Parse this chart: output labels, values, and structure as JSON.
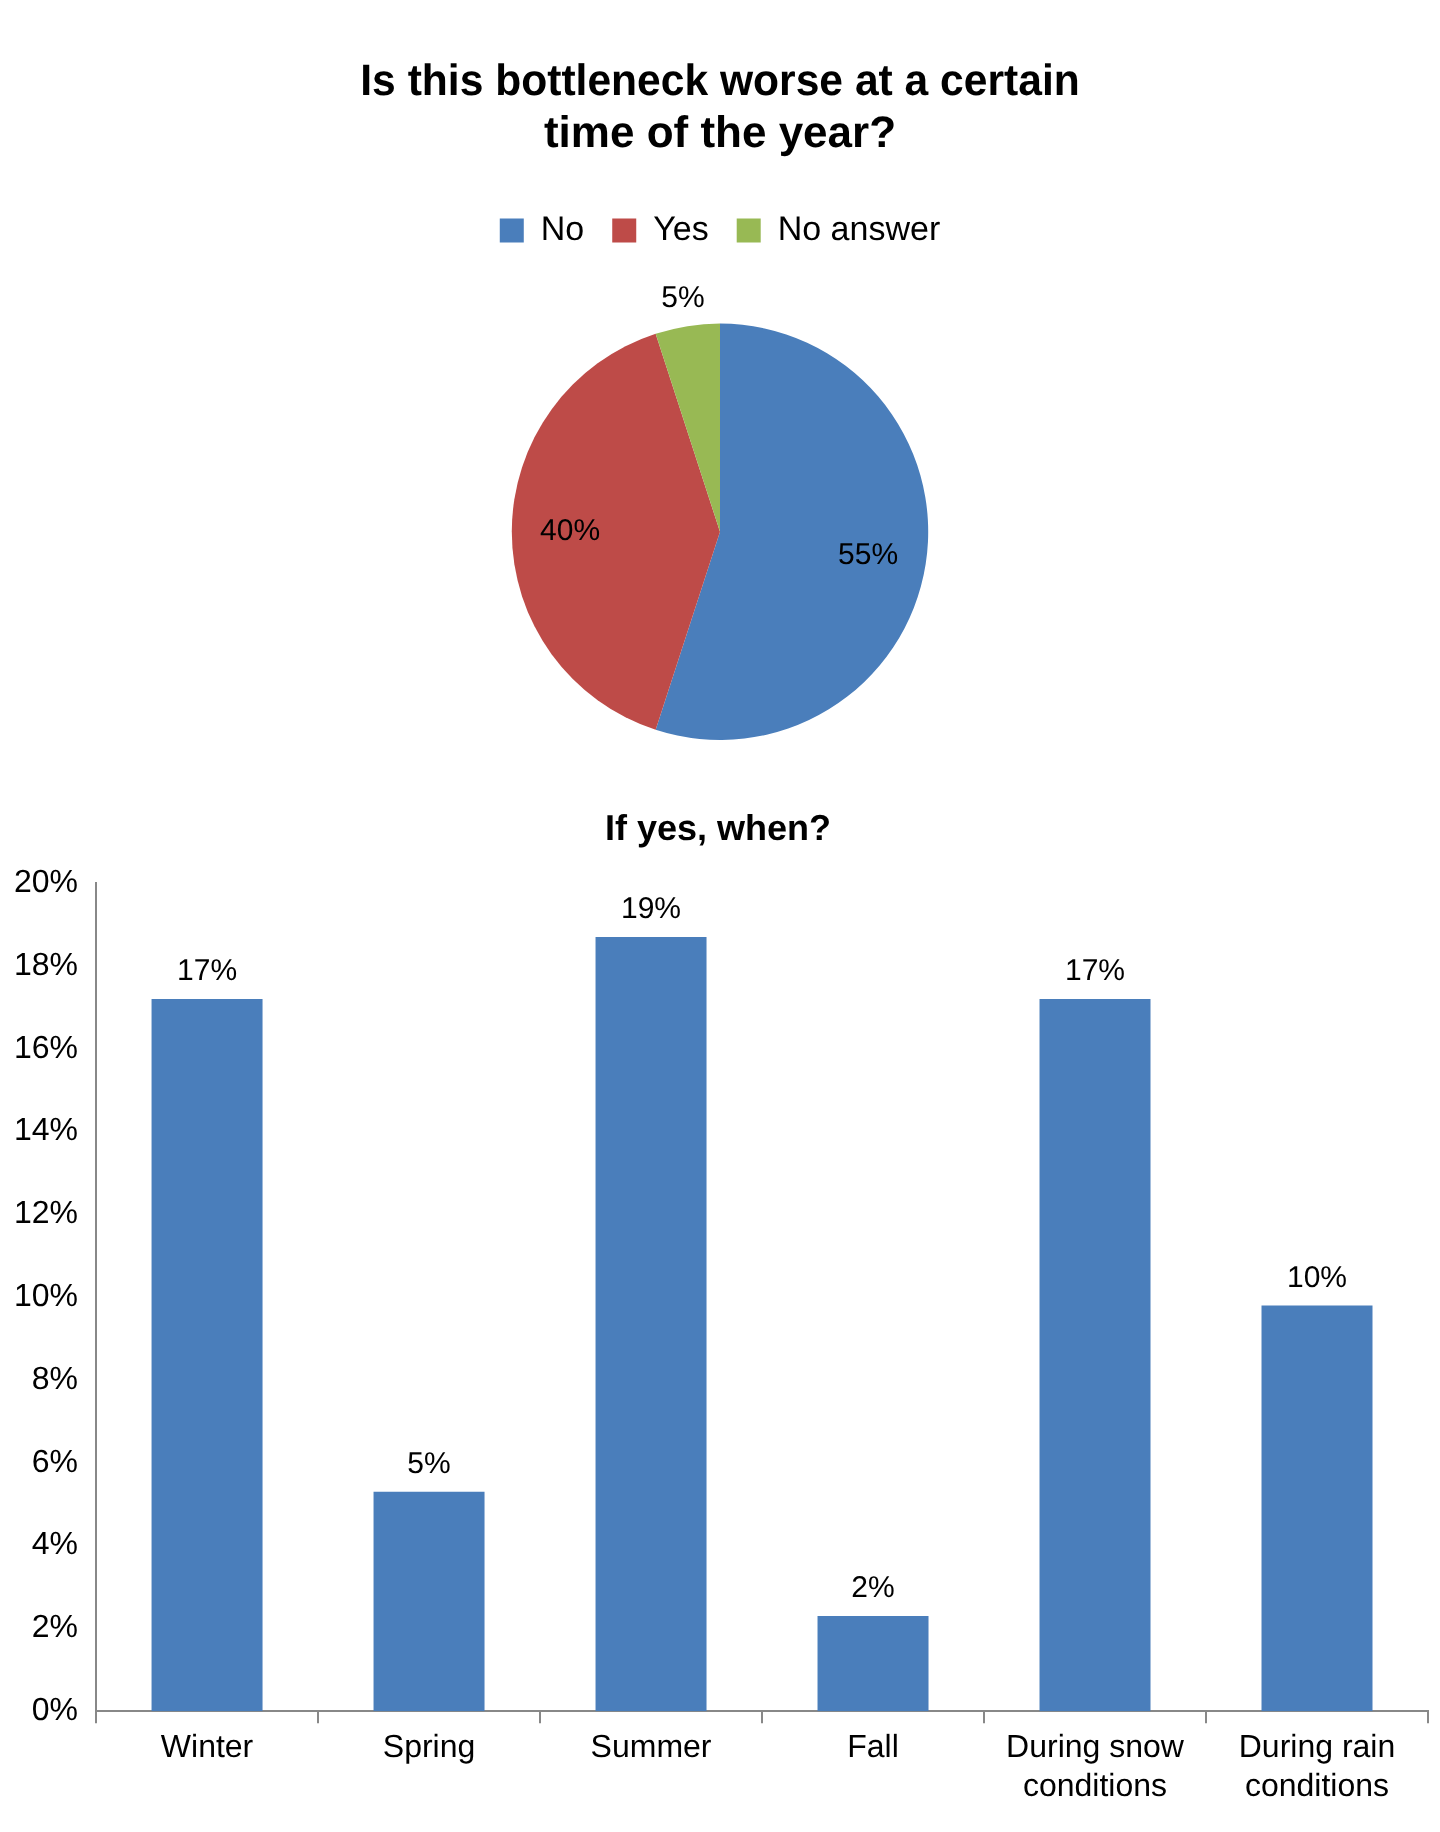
{
  "chart_data": [
    {
      "type": "pie",
      "title": "Is this bottleneck worse at a certain time of the year?",
      "categories": [
        "No",
        "Yes",
        "No answer"
      ],
      "values": [
        55,
        40,
        5
      ],
      "colors": [
        "#4a7ebb",
        "#be4b48",
        "#98b954"
      ],
      "value_labels": [
        "55%",
        "40%",
        "5%"
      ],
      "legend": "top"
    },
    {
      "type": "bar",
      "title": "If yes, when?",
      "categories": [
        "Winter",
        "Spring",
        "Summer",
        "Fall",
        "During snow conditions",
        "During rain conditions"
      ],
      "values": [
        17.2,
        5.3,
        18.7,
        2.3,
        17.2,
        9.8
      ],
      "color": "#4a7ebb",
      "value_labels": [
        "17%",
        "5%",
        "19%",
        "2%",
        "17%",
        "10%"
      ],
      "ylim": [
        0,
        20
      ],
      "yticks": [
        {
          "value": 0,
          "label": "0%"
        },
        {
          "value": 2,
          "label": "2%"
        },
        {
          "value": 4,
          "label": "4%"
        },
        {
          "value": 6,
          "label": "6%"
        },
        {
          "value": 8,
          "label": "8%"
        },
        {
          "value": 10,
          "label": "10%"
        },
        {
          "value": 12,
          "label": "12%"
        },
        {
          "value": 14,
          "label": "14%"
        },
        {
          "value": 16,
          "label": "16%"
        },
        {
          "value": 18,
          "label": "18%"
        },
        {
          "value": 20,
          "label": "20%"
        }
      ],
      "grid": false,
      "legend": false
    }
  ]
}
